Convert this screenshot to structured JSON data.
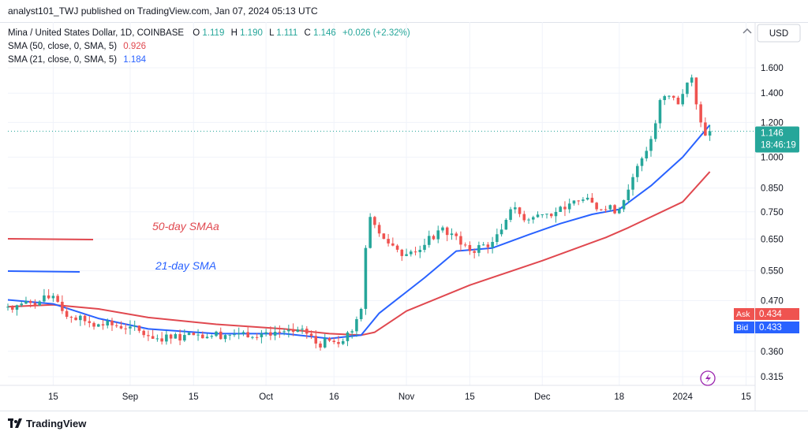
{
  "header": {
    "published": "analyst101_TWJ published on TradingView.com, Jan 07, 2024 05:13 UTC"
  },
  "legend": {
    "symbol": "Mina / United States Dollar, 1D, COINBASE",
    "ohlc": [
      {
        "label": "O",
        "value": "1.119"
      },
      {
        "label": "H",
        "value": "1.190"
      },
      {
        "label": "L",
        "value": "1.111"
      },
      {
        "label": "C",
        "value": "1.146"
      }
    ],
    "change": "+0.026 (+2.32%)",
    "sma50_label": "SMA (50, close, 0, SMA, 5)",
    "sma50_value": "0.926",
    "sma21_label": "SMA (21, close, 0, SMA, 5)",
    "sma21_value": "1.184"
  },
  "currency": "USD",
  "last_price": "1.146",
  "countdown": "18:46:19",
  "ask": {
    "label": "Ask",
    "value": "0.434"
  },
  "bid": {
    "label": "Bid",
    "value": "0.433"
  },
  "annotations": {
    "sma50": "50-day SMAa",
    "sma21": "21-day SMA"
  },
  "footer": {
    "brand": "TradingView"
  },
  "colors": {
    "up": "#26a69a",
    "down": "#ef5350",
    "sma50": "#e0484f",
    "sma21": "#2962ff",
    "ask": "#ef5350",
    "bid": "#2962ff",
    "grid": "#f0f3fa",
    "axis_text": "#131722"
  },
  "chart_data": {
    "type": "candlestick",
    "scale": "log",
    "ylim": [
      0.29,
      2.0
    ],
    "y_ticks": [
      "0.315",
      "0.360",
      "0.470",
      "0.550",
      "0.650",
      "0.750",
      "0.850",
      "1.000",
      "1.200",
      "1.400",
      "1.600"
    ],
    "x_ticks": [
      {
        "label": "15",
        "date": "2023-08-15"
      },
      {
        "label": "Sep",
        "date": "2023-09-01"
      },
      {
        "label": "15",
        "date": "2023-09-15"
      },
      {
        "label": "Oct",
        "date": "2023-10-01"
      },
      {
        "label": "16",
        "date": "2023-10-16"
      },
      {
        "label": "Nov",
        "date": "2023-11-01"
      },
      {
        "label": "15",
        "date": "2023-11-15"
      },
      {
        "label": "Dec",
        "date": "2023-12-01"
      },
      {
        "label": "18",
        "date": "2023-12-18"
      },
      {
        "label": "2024",
        "date": "2024-01-01"
      },
      {
        "label": "15",
        "date": "2024-01-15"
      }
    ],
    "x_range": [
      "2023-08-05",
      "2024-01-17"
    ],
    "series": [
      {
        "name": "Mina / United States Dollar",
        "kind": "candles",
        "close_anchors": [
          [
            "2023-08-05",
            0.455
          ],
          [
            "2023-08-12",
            0.468
          ],
          [
            "2023-08-15",
            0.482
          ],
          [
            "2023-08-17",
            0.445
          ],
          [
            "2023-08-19",
            0.43
          ],
          [
            "2023-08-25",
            0.415
          ],
          [
            "2023-09-01",
            0.41
          ],
          [
            "2023-09-05",
            0.39
          ],
          [
            "2023-09-10",
            0.385
          ],
          [
            "2023-09-15",
            0.392
          ],
          [
            "2023-09-25",
            0.395
          ],
          [
            "2023-10-01",
            0.398
          ],
          [
            "2023-10-05",
            0.4
          ],
          [
            "2023-10-10",
            0.395
          ],
          [
            "2023-10-12",
            0.375
          ],
          [
            "2023-10-16",
            0.378
          ],
          [
            "2023-10-20",
            0.4
          ],
          [
            "2023-10-22",
            0.45
          ],
          [
            "2023-10-23",
            0.62
          ],
          [
            "2023-10-24",
            0.73
          ],
          [
            "2023-10-25",
            0.7
          ],
          [
            "2023-10-28",
            0.635
          ],
          [
            "2023-11-01",
            0.6
          ],
          [
            "2023-11-05",
            0.63
          ],
          [
            "2023-11-08",
            0.68
          ],
          [
            "2023-11-12",
            0.66
          ],
          [
            "2023-11-15",
            0.61
          ],
          [
            "2023-11-20",
            0.64
          ],
          [
            "2023-11-24",
            0.76
          ],
          [
            "2023-11-28",
            0.72
          ],
          [
            "2023-12-01",
            0.74
          ],
          [
            "2023-12-06",
            0.76
          ],
          [
            "2023-12-10",
            0.8
          ],
          [
            "2023-12-14",
            0.76
          ],
          [
            "2023-12-18",
            0.76
          ],
          [
            "2023-12-21",
            0.9
          ],
          [
            "2023-12-25",
            1.1
          ],
          [
            "2023-12-27",
            1.35
          ],
          [
            "2023-12-29",
            1.38
          ],
          [
            "2023-12-31",
            1.32
          ],
          [
            "2024-01-02",
            1.48
          ],
          [
            "2024-01-03",
            1.52
          ],
          [
            "2024-01-04",
            1.32
          ],
          [
            "2024-01-05",
            1.2
          ],
          [
            "2024-01-06",
            1.12
          ],
          [
            "2024-01-07",
            1.146
          ]
        ]
      },
      {
        "name": "SMA (50, close, 0, SMA, 5)",
        "kind": "line",
        "points": [
          [
            "2023-08-05",
            0.455
          ],
          [
            "2023-08-15",
            0.46
          ],
          [
            "2023-08-25",
            0.45
          ],
          [
            "2023-09-05",
            0.43
          ],
          [
            "2023-09-20",
            0.415
          ],
          [
            "2023-10-05",
            0.405
          ],
          [
            "2023-10-15",
            0.395
          ],
          [
            "2023-10-22",
            0.392
          ],
          [
            "2023-10-25",
            0.398
          ],
          [
            "2023-11-01",
            0.445
          ],
          [
            "2023-11-15",
            0.51
          ],
          [
            "2023-12-01",
            0.58
          ],
          [
            "2023-12-15",
            0.655
          ],
          [
            "2023-12-20",
            0.69
          ],
          [
            "2024-01-01",
            0.79
          ],
          [
            "2024-01-07",
            0.926
          ]
        ]
      },
      {
        "name": "SMA (21, close, 0, SMA, 5)",
        "kind": "line",
        "points": [
          [
            "2023-08-05",
            0.472
          ],
          [
            "2023-08-15",
            0.462
          ],
          [
            "2023-08-25",
            0.428
          ],
          [
            "2023-09-05",
            0.405
          ],
          [
            "2023-09-20",
            0.395
          ],
          [
            "2023-10-05",
            0.395
          ],
          [
            "2023-10-15",
            0.385
          ],
          [
            "2023-10-22",
            0.392
          ],
          [
            "2023-10-26",
            0.44
          ],
          [
            "2023-11-05",
            0.53
          ],
          [
            "2023-11-12",
            0.61
          ],
          [
            "2023-11-20",
            0.62
          ],
          [
            "2023-11-28",
            0.665
          ],
          [
            "2023-12-05",
            0.705
          ],
          [
            "2023-12-12",
            0.74
          ],
          [
            "2023-12-18",
            0.76
          ],
          [
            "2023-12-25",
            0.86
          ],
          [
            "2024-01-01",
            1.0
          ],
          [
            "2024-01-07",
            1.184
          ]
        ]
      }
    ]
  }
}
